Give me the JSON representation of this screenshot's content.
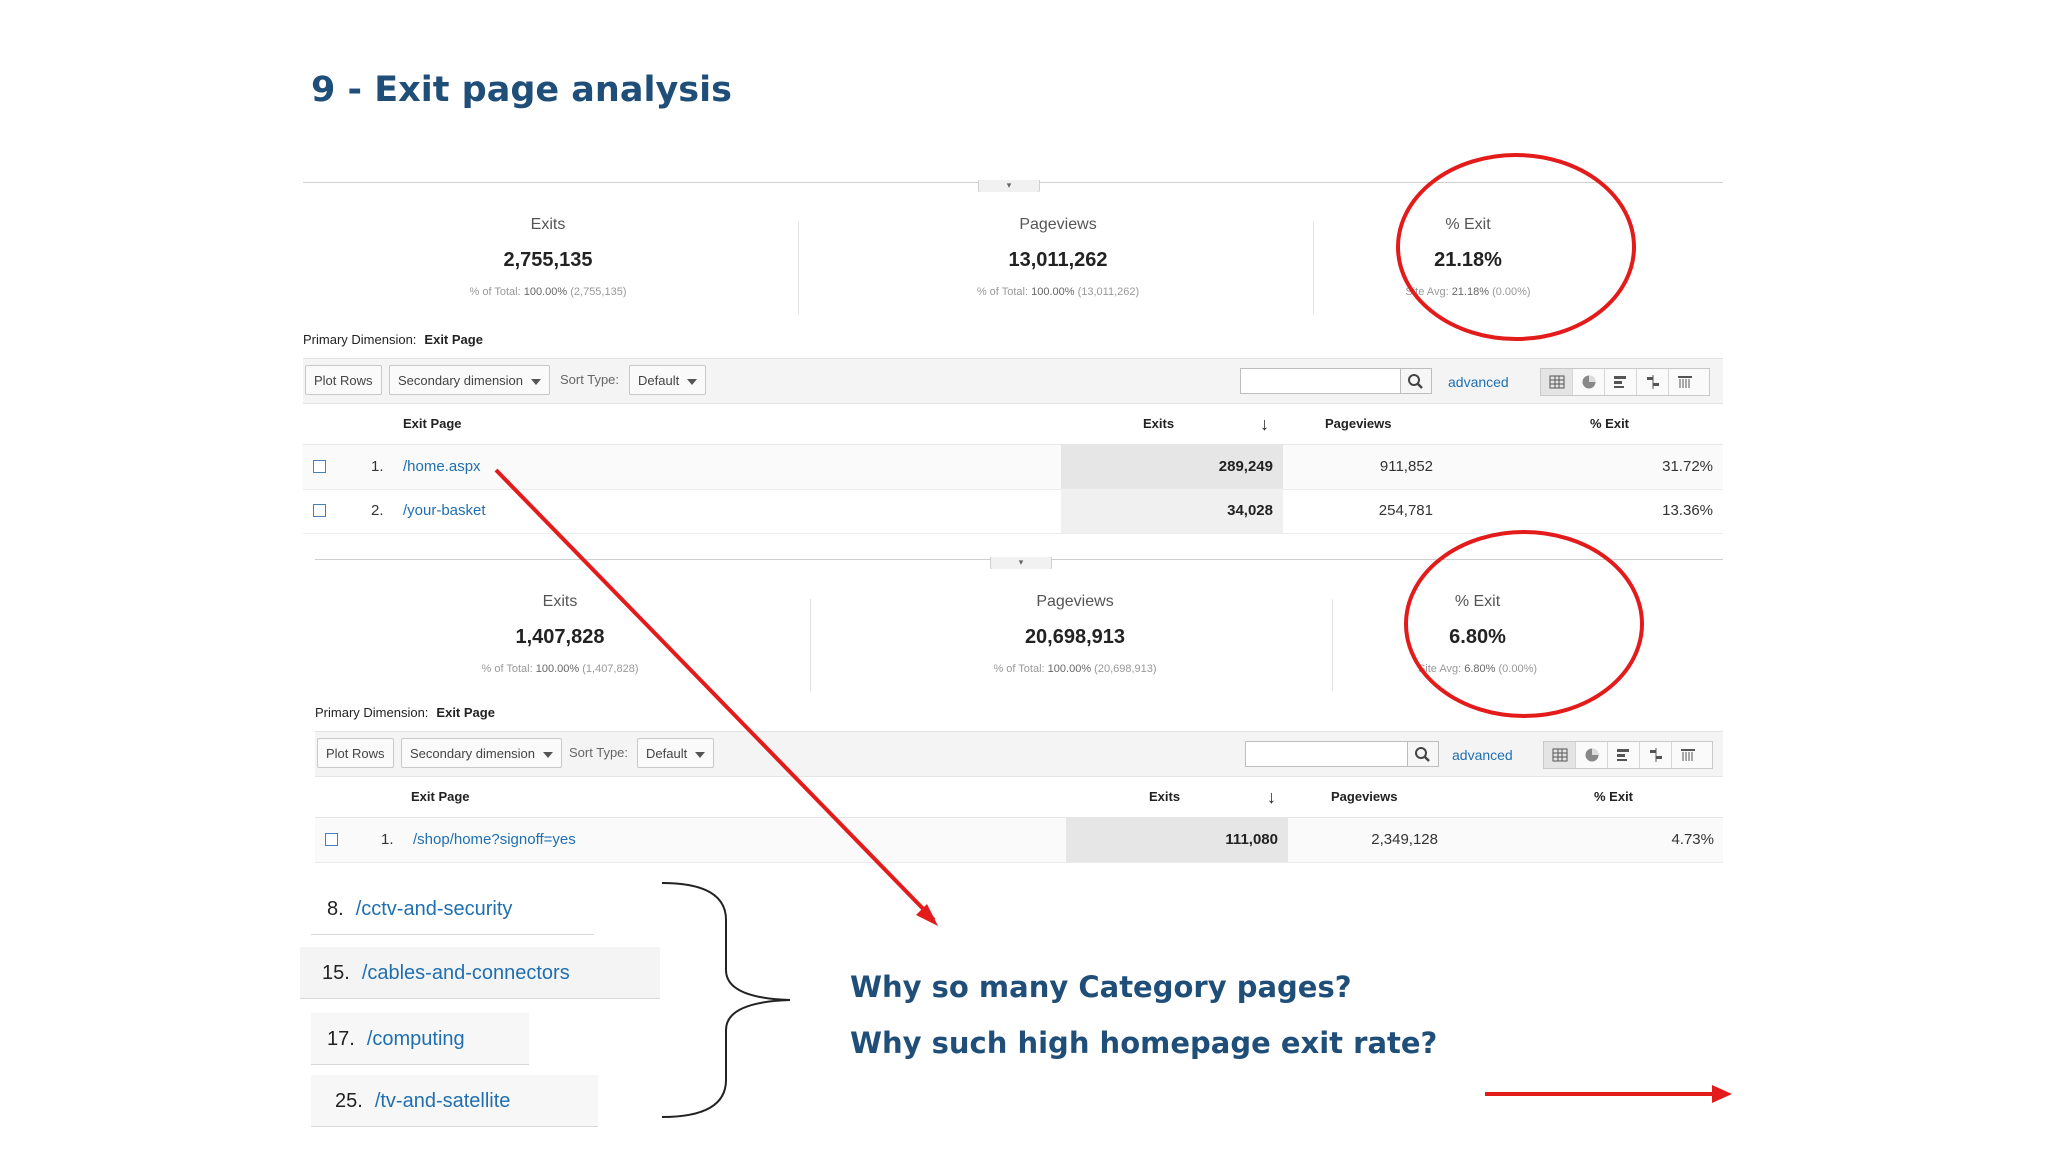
{
  "slide": {
    "title": "9 - Exit page analysis",
    "questions": [
      "Why so many Category pages?",
      "Why such high homepage exit rate?"
    ]
  },
  "report_top": {
    "metrics": [
      {
        "label": "Exits",
        "value": "2,755,135",
        "sub_prefix": "% of Total:",
        "sub_value": "100.00%",
        "sub_suffix": "(2,755,135)"
      },
      {
        "label": "Pageviews",
        "value": "13,011,262",
        "sub_prefix": "% of Total:",
        "sub_value": "100.00%",
        "sub_suffix": "(13,011,262)"
      },
      {
        "label": "% Exit",
        "value": "21.18%",
        "sub_prefix": "Site Avg:",
        "sub_value": "21.18%",
        "sub_suffix": "(0.00%)"
      }
    ],
    "primary_dimension_label": "Primary Dimension:",
    "primary_dimension_value": "Exit Page",
    "toolbar": {
      "plot_rows": "Plot Rows",
      "secondary": "Secondary dimension",
      "sort_type": "Sort Type:",
      "sort_value": "Default",
      "advanced": "advanced"
    },
    "columns": [
      "Exit Page",
      "Exits",
      "Pageviews",
      "% Exit"
    ],
    "rows": [
      {
        "num": "1.",
        "page": "/home.aspx",
        "exits": "289,249",
        "pageviews": "911,852",
        "exit_pct": "31.72%"
      },
      {
        "num": "2.",
        "page": "/your-basket",
        "exits": "34,028",
        "pageviews": "254,781",
        "exit_pct": "13.36%"
      }
    ]
  },
  "report_bottom": {
    "metrics": [
      {
        "label": "Exits",
        "value": "1,407,828",
        "sub_prefix": "% of Total:",
        "sub_value": "100.00%",
        "sub_suffix": "(1,407,828)"
      },
      {
        "label": "Pageviews",
        "value": "20,698,913",
        "sub_prefix": "% of Total:",
        "sub_value": "100.00%",
        "sub_suffix": "(20,698,913)"
      },
      {
        "label": "% Exit",
        "value": "6.80%",
        "sub_prefix": "Site Avg:",
        "sub_value": "6.80%",
        "sub_suffix": "(0.00%)"
      }
    ],
    "primary_dimension_label": "Primary Dimension:",
    "primary_dimension_value": "Exit Page",
    "toolbar": {
      "plot_rows": "Plot Rows",
      "secondary": "Secondary dimension",
      "sort_type": "Sort Type:",
      "sort_value": "Default",
      "advanced": "advanced"
    },
    "columns": [
      "Exit Page",
      "Exits",
      "Pageviews",
      "% Exit"
    ],
    "rows": [
      {
        "num": "1.",
        "page": "/shop/home?signoff=yes",
        "exits": "111,080",
        "pageviews": "2,349,128",
        "exit_pct": "4.73%"
      }
    ]
  },
  "categories": [
    {
      "num": "8.",
      "path": "/cctv-and-security"
    },
    {
      "num": "15.",
      "path": "/cables-and-connectors"
    },
    {
      "num": "17.",
      "path": "/computing"
    },
    {
      "num": "25.",
      "path": "/tv-and-satellite"
    }
  ],
  "colors": {
    "title": "#1f4e79",
    "link": "#1f6fb0",
    "annotation": "#e31b1b"
  }
}
